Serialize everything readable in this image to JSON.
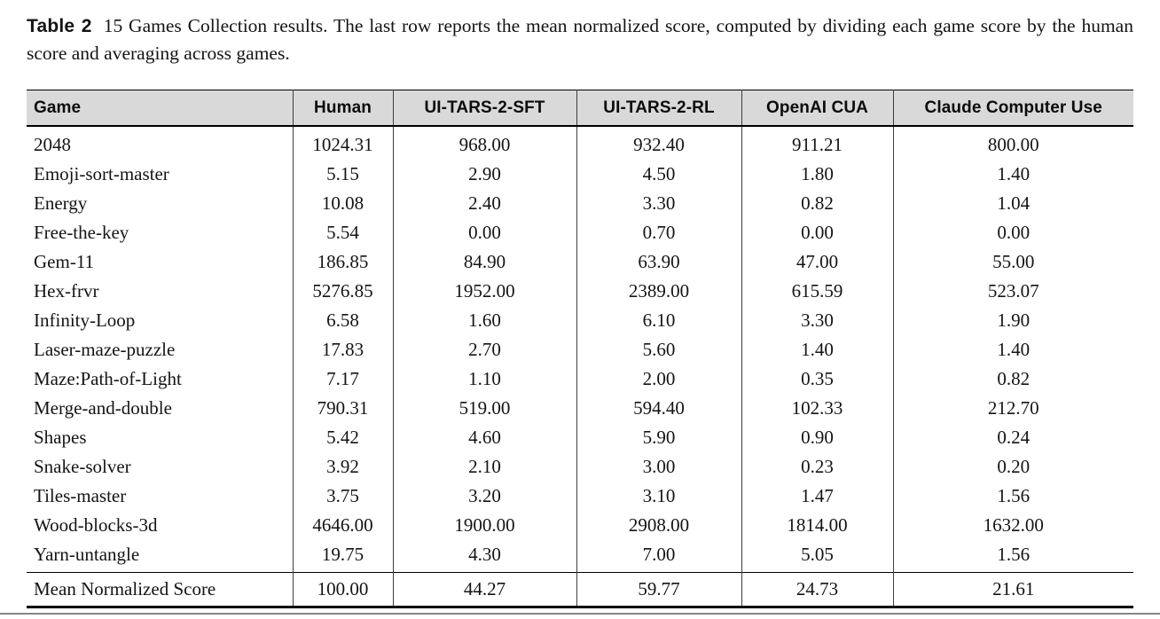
{
  "caption": {
    "label": "Table 2",
    "text": "15 Games Collection results. The last row reports the mean normalized score, computed by dividing each game score by the human score and averaging across games."
  },
  "table": {
    "columns": [
      "Game",
      "Human",
      "UI-TARS-2-SFT",
      "UI-TARS-2-RL",
      "OpenAI CUA",
      "Claude Computer Use"
    ],
    "rows": [
      [
        "2048",
        "1024.31",
        "968.00",
        "932.40",
        "911.21",
        "800.00"
      ],
      [
        "Emoji-sort-master",
        "5.15",
        "2.90",
        "4.50",
        "1.80",
        "1.40"
      ],
      [
        "Energy",
        "10.08",
        "2.40",
        "3.30",
        "0.82",
        "1.04"
      ],
      [
        "Free-the-key",
        "5.54",
        "0.00",
        "0.70",
        "0.00",
        "0.00"
      ],
      [
        "Gem-11",
        "186.85",
        "84.90",
        "63.90",
        "47.00",
        "55.00"
      ],
      [
        "Hex-frvr",
        "5276.85",
        "1952.00",
        "2389.00",
        "615.59",
        "523.07"
      ],
      [
        "Infinity-Loop",
        "6.58",
        "1.60",
        "6.10",
        "3.30",
        "1.90"
      ],
      [
        "Laser-maze-puzzle",
        "17.83",
        "2.70",
        "5.60",
        "1.40",
        "1.40"
      ],
      [
        "Maze:Path-of-Light",
        "7.17",
        "1.10",
        "2.00",
        "0.35",
        "0.82"
      ],
      [
        "Merge-and-double",
        "790.31",
        "519.00",
        "594.40",
        "102.33",
        "212.70"
      ],
      [
        "Shapes",
        "5.42",
        "4.60",
        "5.90",
        "0.90",
        "0.24"
      ],
      [
        "Snake-solver",
        "3.92",
        "2.10",
        "3.00",
        "0.23",
        "0.20"
      ],
      [
        "Tiles-master",
        "3.75",
        "3.20",
        "3.10",
        "1.47",
        "1.56"
      ],
      [
        "Wood-blocks-3d",
        "4646.00",
        "1900.00",
        "2908.00",
        "1814.00",
        "1632.00"
      ],
      [
        "Yarn-untangle",
        "19.75",
        "4.30",
        "7.00",
        "5.05",
        "1.56"
      ]
    ],
    "footer_row": [
      "Mean Normalized Score",
      "100.00",
      "44.27",
      "59.77",
      "24.73",
      "21.61"
    ]
  },
  "colors": {
    "header_bg": "#d9d9d9",
    "rule": "#000000",
    "column_separator": "#3d3d3d",
    "page_divider": "#868686"
  }
}
